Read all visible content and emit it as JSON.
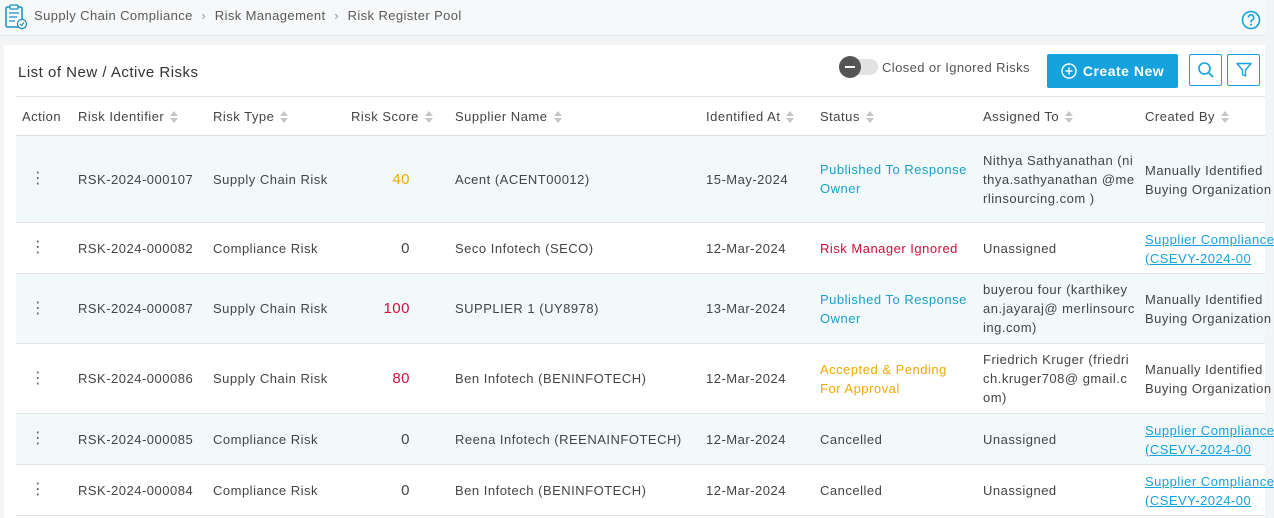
{
  "breadcrumb": [
    "Supply Chain Compliance",
    "Risk Management",
    "Risk Register Pool"
  ],
  "panel": {
    "title": "List of New / Active Risks",
    "toggle_label": "Closed or Ignored Risks",
    "create_label": "Create New"
  },
  "colors": {
    "accent": "#16a2dc",
    "score_amber": "#f2a900",
    "score_red": "#d0103a",
    "status_blue": "#1aa0c8",
    "row_alt": "#f2f9fb"
  },
  "columns": [
    "Action",
    "Risk Identifier",
    "Risk Type",
    "Risk Score",
    "Supplier Name",
    "Identified At",
    "Status",
    "Assigned To",
    "Created By"
  ],
  "rows": [
    {
      "id": "RSK-2024-000107",
      "type": "Supply Chain Risk",
      "score": "40",
      "score_color": "amber",
      "supplier": "Acent (ACENT00012)",
      "identified": "15-May-2024",
      "status": "Published To Response Owner",
      "status_color": "blue",
      "assigned": "Nithya Sathyanathan (nithya.sathyanathan @merlinsourcing.com )",
      "created": "Manually Identified - Buying Organization",
      "created_link": false
    },
    {
      "id": "RSK-2024-000082",
      "type": "Compliance Risk",
      "score": "0",
      "score_color": "plain",
      "supplier": "Seco Infotech (SECO)",
      "identified": "12-Mar-2024",
      "status": "Risk Manager Ignored",
      "status_color": "red",
      "assigned": "Unassigned",
      "created": "Supplier Compliance (CSEVY-2024-00",
      "created_link": true
    },
    {
      "id": "RSK-2024-000087",
      "type": "Supply Chain Risk",
      "score": "100",
      "score_color": "red",
      "supplier": "SUPPLIER 1 (UY8978)",
      "identified": "13-Mar-2024",
      "status": "Published To Response Owner",
      "status_color": "blue",
      "assigned": "buyerou four (karthikeyan.jayaraj@ merlinsourcing.com)",
      "created": "Manually Identified - Buying Organization",
      "created_link": false
    },
    {
      "id": "RSK-2024-000086",
      "type": "Supply Chain Risk",
      "score": "80",
      "score_color": "red",
      "supplier": "Ben Infotech (BENINFOTECH)",
      "identified": "12-Mar-2024",
      "status": "Accepted & Pending For Approval",
      "status_color": "amber",
      "assigned": "Friedrich Kruger (friedrich.kruger708@ gmail.com)",
      "created": "Manually Identified - Buying Organization",
      "created_link": false
    },
    {
      "id": "RSK-2024-000085",
      "type": "Compliance Risk",
      "score": "0",
      "score_color": "plain",
      "supplier": "Reena Infotech (REENAINFOTECH)",
      "identified": "12-Mar-2024",
      "status": "Cancelled",
      "status_color": "grey",
      "assigned": "Unassigned",
      "created": "Supplier Compliance (CSEVY-2024-00",
      "created_link": true
    },
    {
      "id": "RSK-2024-000084",
      "type": "Compliance Risk",
      "score": "0",
      "score_color": "plain",
      "supplier": "Ben Infotech (BENINFOTECH)",
      "identified": "12-Mar-2024",
      "status": "Cancelled",
      "status_color": "grey",
      "assigned": "Unassigned",
      "created": "Supplier Compliance (CSEVY-2024-00",
      "created_link": true
    }
  ]
}
